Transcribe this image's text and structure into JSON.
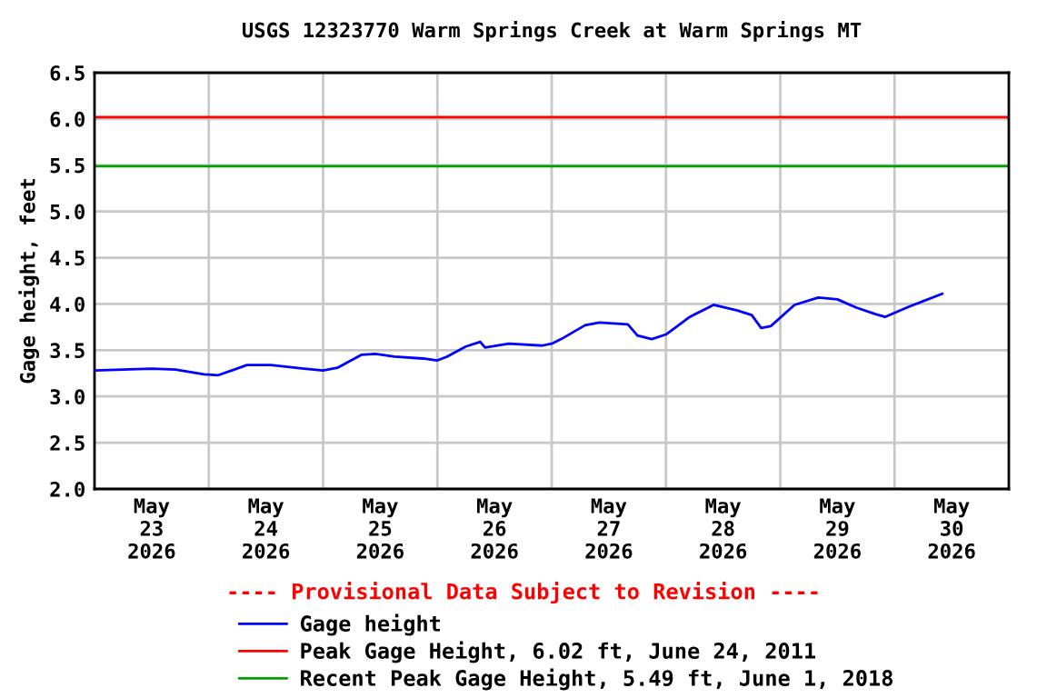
{
  "chart_data": {
    "type": "line",
    "title": "USGS 12323770 Warm Springs Creek at Warm Springs MT",
    "ylabel": "Gage height, feet",
    "x": [
      "2026-05-23T00:00",
      "2026-05-23T12:00",
      "2026-05-23T17:00",
      "2026-05-23T23:00",
      "2026-05-24T02:00",
      "2026-05-24T08:00",
      "2026-05-24T13:00",
      "2026-05-24T20:00",
      "2026-05-25T00:00",
      "2026-05-25T03:00",
      "2026-05-25T08:00",
      "2026-05-25T11:00",
      "2026-05-25T15:00",
      "2026-05-25T21:00",
      "2026-05-26T00:00",
      "2026-05-26T02:00",
      "2026-05-26T06:00",
      "2026-05-26T09:00",
      "2026-05-26T10:00",
      "2026-05-26T15:00",
      "2026-05-26T22:00",
      "2026-05-27T00:00",
      "2026-05-27T02:00",
      "2026-05-27T07:00",
      "2026-05-27T10:00",
      "2026-05-27T16:00",
      "2026-05-27T18:00",
      "2026-05-27T21:00",
      "2026-05-28T00:00",
      "2026-05-28T05:00",
      "2026-05-28T10:00",
      "2026-05-28T15:00",
      "2026-05-28T18:00",
      "2026-05-28T20:00",
      "2026-05-28T22:00",
      "2026-05-29T03:00",
      "2026-05-29T08:00",
      "2026-05-29T12:00",
      "2026-05-29T16:00",
      "2026-05-29T20:00",
      "2026-05-29T22:00",
      "2026-05-30T03:00",
      "2026-05-30T06:00",
      "2026-05-30T10:00"
    ],
    "series": [
      {
        "name": "Gage height",
        "color": "#0000ff",
        "values": [
          3.28,
          3.3,
          3.29,
          3.24,
          3.23,
          3.34,
          3.34,
          3.3,
          3.28,
          3.31,
          3.45,
          3.46,
          3.43,
          3.41,
          3.39,
          3.43,
          3.54,
          3.59,
          3.53,
          3.57,
          3.55,
          3.57,
          3.62,
          3.77,
          3.8,
          3.78,
          3.66,
          3.62,
          3.67,
          3.86,
          3.99,
          3.93,
          3.88,
          3.74,
          3.76,
          3.99,
          4.07,
          4.05,
          3.96,
          3.89,
          3.86,
          3.97,
          4.03,
          4.11
        ]
      }
    ],
    "ref_lines": [
      {
        "axis": "y",
        "value": 6.02,
        "label": "Peak Gage Height, 6.02 ft, June 24, 2011",
        "color": "#ff0000"
      },
      {
        "axis": "y",
        "value": 5.49,
        "label": "Recent Peak Gage Height, 5.49 ft, June 1, 2018",
        "color": "#00a000"
      }
    ],
    "annotations": [
      "---- Provisional Data Subject to Revision ----"
    ],
    "xlim": [
      "2026-05-23T00:00",
      "2026-05-31T00:00"
    ],
    "xticks": [
      {
        "value": "2026-05-23T12:00",
        "label": "May\n23\n2026"
      },
      {
        "value": "2026-05-24T00:00",
        "label": null
      },
      {
        "value": "2026-05-24T12:00",
        "label": "May\n24\n2026"
      },
      {
        "value": "2026-05-25T00:00",
        "label": null
      },
      {
        "value": "2026-05-25T12:00",
        "label": "May\n25\n2026"
      },
      {
        "value": "2026-05-26T00:00",
        "label": null
      },
      {
        "value": "2026-05-26T12:00",
        "label": "May\n26\n2026"
      },
      {
        "value": "2026-05-27T00:00",
        "label": null
      },
      {
        "value": "2026-05-27T12:00",
        "label": "May\n27\n2026"
      },
      {
        "value": "2026-05-28T00:00",
        "label": null
      },
      {
        "value": "2026-05-28T12:00",
        "label": "May\n28\n2026"
      },
      {
        "value": "2026-05-29T00:00",
        "label": null
      },
      {
        "value": "2026-05-29T12:00",
        "label": "May\n29\n2026"
      },
      {
        "value": "2026-05-30T00:00",
        "label": null
      },
      {
        "value": "2026-05-30T12:00",
        "label": "May\n30\n2026"
      }
    ],
    "ylim": [
      2.0,
      6.5
    ],
    "yticks": [
      {
        "value": 2.0,
        "label": "2.0"
      },
      {
        "value": 2.5,
        "label": "2.5"
      },
      {
        "value": 3.0,
        "label": "3.0"
      },
      {
        "value": 3.5,
        "label": "3.5"
      },
      {
        "value": 4.0,
        "label": "4.0"
      },
      {
        "value": 4.5,
        "label": "4.5"
      },
      {
        "value": 5.0,
        "label": "5.0"
      },
      {
        "value": 5.5,
        "label": "5.5"
      },
      {
        "value": 6.0,
        "label": "6.0"
      },
      {
        "value": 6.5,
        "label": "6.5"
      }
    ],
    "grid": true,
    "legend": "bottom"
  }
}
